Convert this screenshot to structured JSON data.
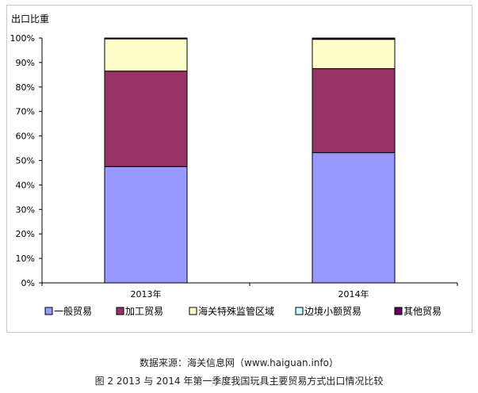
{
  "chart_data": {
    "type": "bar",
    "stacked": true,
    "ylabel": "出口比重",
    "yticks": [
      "0%",
      "10%",
      "20%",
      "30%",
      "40%",
      "50%",
      "60%",
      "70%",
      "80%",
      "90%",
      "100%"
    ],
    "ylim": [
      0,
      100
    ],
    "categories": [
      "2013年",
      "2014年"
    ],
    "series": [
      {
        "name": "一般贸易",
        "color": "#9999ff",
        "values": [
          47.5,
          53.2
        ]
      },
      {
        "name": "加工贸易",
        "color": "#993366",
        "values": [
          39.0,
          34.3
        ]
      },
      {
        "name": "海关特殊监管区域",
        "color": "#ffffcc",
        "values": [
          13.2,
          12.0
        ]
      },
      {
        "name": "边境小额贸易",
        "color": "#ccffff",
        "values": [
          0.1,
          0.1
        ]
      },
      {
        "name": "其他贸易",
        "color": "#660066",
        "values": [
          0.2,
          0.4
        ]
      }
    ],
    "grid": false,
    "legend_position": "bottom"
  },
  "source_note": "数据来源：海关信息网（www.haiguan.info）",
  "caption": "图 2 2013 与 2014 年第一季度我国玩具主要贸易方式出口情况比较"
}
